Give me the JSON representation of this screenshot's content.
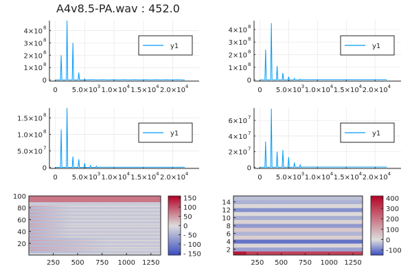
{
  "figure": {
    "title": "A4v8.5-PA.wav : 452.0"
  },
  "chart_data": [
    {
      "type": "line",
      "panel": "spectrum-1",
      "series": [
        {
          "name": "y1",
          "color": "#009AF9",
          "peaks": [
            [
              1000,
              200000000
            ],
            [
              2000,
              480000000
            ],
            [
              3000,
              300000000
            ],
            [
              4000,
              60000000
            ],
            [
              5000,
              8000000
            ]
          ]
        }
      ],
      "xlim": [
        -1000,
        24500
      ],
      "ylim": [
        -10000000,
        480000000
      ],
      "xticks": [
        {
          "v": 0,
          "label": "0",
          "exp": ""
        },
        {
          "v": 5000,
          "label": "5.0×10",
          "exp": "3"
        },
        {
          "v": 10000,
          "label": "1.0×10",
          "exp": "4"
        },
        {
          "v": 15000,
          "label": "1.5×10",
          "exp": "4"
        },
        {
          "v": 20000,
          "label": "2.0×10",
          "exp": "4"
        }
      ],
      "yticks": [
        {
          "v": 0,
          "label": "0",
          "exp": ""
        },
        {
          "v": 100000000,
          "label": "1×10",
          "exp": "8"
        },
        {
          "v": 200000000,
          "label": "2×10",
          "exp": "8"
        },
        {
          "v": 300000000,
          "label": "3×10",
          "exp": "8"
        },
        {
          "v": 400000000,
          "label": "4×10",
          "exp": "8"
        }
      ],
      "legend": "top-right"
    },
    {
      "type": "line",
      "panel": "spectrum-2",
      "series": [
        {
          "name": "y1",
          "color": "#009AF9",
          "peaks": [
            [
              1000,
              240000000
            ],
            [
              2000,
              450000000
            ],
            [
              3000,
              110000000
            ],
            [
              4000,
              55000000
            ],
            [
              5000,
              25000000
            ],
            [
              6000,
              12000000
            ],
            [
              7000,
              6000000
            ]
          ]
        }
      ],
      "xlim": [
        -1000,
        24500
      ],
      "ylim": [
        -10000000,
        470000000
      ],
      "xticks": [
        {
          "v": 0,
          "label": "0",
          "exp": ""
        },
        {
          "v": 5000,
          "label": "5.0×10",
          "exp": "3"
        },
        {
          "v": 10000,
          "label": "1.0×10",
          "exp": "4"
        },
        {
          "v": 15000,
          "label": "1.5×10",
          "exp": "4"
        },
        {
          "v": 20000,
          "label": "2.0×10",
          "exp": "4"
        }
      ],
      "yticks": [
        {
          "v": 0,
          "label": "0",
          "exp": ""
        },
        {
          "v": 100000000,
          "label": "1×10",
          "exp": "8"
        },
        {
          "v": 200000000,
          "label": "2×10",
          "exp": "8"
        },
        {
          "v": 300000000,
          "label": "3×10",
          "exp": "8"
        },
        {
          "v": 400000000,
          "label": "4×10",
          "exp": "8"
        }
      ],
      "legend": "top-right"
    },
    {
      "type": "line",
      "panel": "spectrum-3",
      "series": [
        {
          "name": "y1",
          "color": "#009AF9",
          "peaks": [
            [
              1000,
              115000000
            ],
            [
              2000,
              180000000
            ],
            [
              3000,
              33000000
            ],
            [
              4000,
              25000000
            ],
            [
              5000,
              13000000
            ],
            [
              6000,
              6000000
            ],
            [
              7000,
              4000000
            ]
          ]
        }
      ],
      "xlim": [
        -1000,
        24500
      ],
      "ylim": [
        -3000000,
        180000000
      ],
      "xticks": [
        {
          "v": 0,
          "label": "0",
          "exp": ""
        },
        {
          "v": 5000,
          "label": "5.0×10",
          "exp": "3"
        },
        {
          "v": 10000,
          "label": "1.0×10",
          "exp": "4"
        },
        {
          "v": 15000,
          "label": "1.5×10",
          "exp": "4"
        },
        {
          "v": 20000,
          "label": "2.0×10",
          "exp": "4"
        }
      ],
      "yticks": [
        {
          "v": 0,
          "label": "0",
          "exp": ""
        },
        {
          "v": 50000000,
          "label": "5.0×10",
          "exp": "7"
        },
        {
          "v": 100000000,
          "label": "1.0×10",
          "exp": "8"
        },
        {
          "v": 150000000,
          "label": "1.5×10",
          "exp": "8"
        }
      ],
      "legend": "top-right"
    },
    {
      "type": "line",
      "panel": "spectrum-4",
      "series": [
        {
          "name": "y1",
          "color": "#009AF9",
          "peaks": [
            [
              1000,
              33000000
            ],
            [
              2000,
              75000000
            ],
            [
              3000,
              20000000
            ],
            [
              4000,
              22000000
            ],
            [
              5000,
              13000000
            ],
            [
              6000,
              6000000
            ],
            [
              7000,
              3000000
            ]
          ]
        }
      ],
      "xlim": [
        -1000,
        24500
      ],
      "ylim": [
        -1500000,
        76000000
      ],
      "xticks": [
        {
          "v": 0,
          "label": "0",
          "exp": ""
        },
        {
          "v": 5000,
          "label": "5.0×10",
          "exp": "3"
        },
        {
          "v": 10000,
          "label": "1.0×10",
          "exp": "4"
        },
        {
          "v": 15000,
          "label": "1.5×10",
          "exp": "4"
        },
        {
          "v": 20000,
          "label": "2.0×10",
          "exp": "4"
        }
      ],
      "yticks": [
        {
          "v": 0,
          "label": "0",
          "exp": ""
        },
        {
          "v": 20000000,
          "label": "2×10",
          "exp": "7"
        },
        {
          "v": 40000000,
          "label": "4×10",
          "exp": "7"
        },
        {
          "v": 60000000,
          "label": "6×10",
          "exp": "7"
        }
      ],
      "legend": "top-right"
    },
    {
      "type": "heatmap",
      "panel": "spectrogram",
      "rows": 100,
      "cols": 1350,
      "xlim": [
        0,
        1350
      ],
      "ylim": [
        0,
        100
      ],
      "xticks": [
        250,
        500,
        750,
        1000,
        1250
      ],
      "yticks": [
        20,
        40,
        60,
        80,
        100
      ],
      "clim": [
        -160,
        160
      ],
      "colorbar_ticks": [
        {
          "v": 150,
          "label": "150"
        },
        {
          "v": 100,
          "label": "100"
        },
        {
          "v": 50,
          "label": "50"
        },
        {
          "v": 0,
          "label": "0"
        },
        {
          "v": -50,
          "label": "- 50"
        },
        {
          "v": -100,
          "label": "- 100"
        },
        {
          "v": -150,
          "label": "- 150"
        }
      ],
      "colormap": [
        "#3a4cc0",
        "#dddddd",
        "#b40426"
      ]
    },
    {
      "type": "heatmap",
      "panel": "band-matrix",
      "rows": 15,
      "cols": 1350,
      "xlim": [
        0,
        1350
      ],
      "ylim": [
        0,
        15
      ],
      "xticks": [
        250,
        500,
        750,
        1000,
        1250
      ],
      "yticks": [
        2,
        4,
        6,
        8,
        10,
        12,
        14
      ],
      "clim": [
        -150,
        420
      ],
      "row_values": [
        300,
        -60,
        15,
        -110,
        30,
        -40,
        40,
        -70,
        20,
        -50,
        5,
        -80,
        10,
        -45,
        -30
      ],
      "colorbar_ticks": [
        {
          "v": 400,
          "label": "400"
        },
        {
          "v": 300,
          "label": "300"
        },
        {
          "v": 200,
          "label": "200"
        },
        {
          "v": 100,
          "label": "100"
        },
        {
          "v": 0,
          "label": "0"
        },
        {
          "v": -100,
          "label": "-100"
        }
      ],
      "colormap": [
        "#3a4cc0",
        "#dddddd",
        "#b40426"
      ]
    }
  ]
}
